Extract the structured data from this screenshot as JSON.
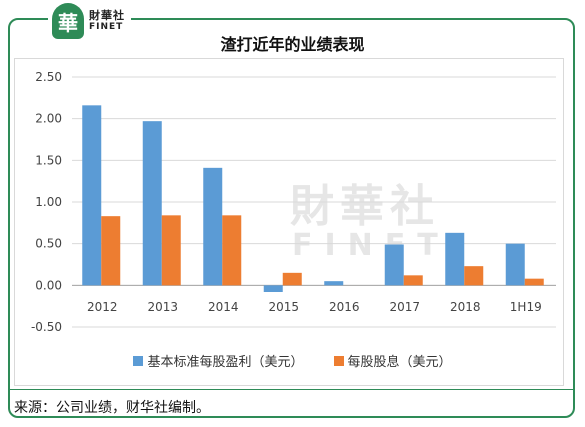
{
  "logo": {
    "glyph": "華",
    "name_cn": "財華社",
    "name_en": "FINET"
  },
  "title": "渣打近年的业绩表现",
  "watermark": {
    "cn": "財華社",
    "en": "FINET"
  },
  "colors": {
    "eps": "#5b9bd5",
    "dps": "#ed7d31",
    "frame": "#2e8b57"
  },
  "chart_data": {
    "type": "bar",
    "title": "渣打近年的业绩表现",
    "categories": [
      "2012",
      "2013",
      "2014",
      "2015",
      "2016",
      "2017",
      "2018",
      "1H19"
    ],
    "series": [
      {
        "name": "基本标准每股盈利（美元）",
        "values": [
          2.16,
          1.97,
          1.41,
          -0.08,
          0.05,
          0.49,
          0.63,
          0.5
        ]
      },
      {
        "name": "每股股息（美元）",
        "values": [
          0.83,
          0.84,
          0.84,
          0.15,
          0.0,
          0.12,
          0.23,
          0.08
        ]
      }
    ],
    "yticks": [
      "2.50",
      "2.00",
      "1.50",
      "1.00",
      "0.50",
      "0.00",
      "-0.50"
    ],
    "ylim": [
      -0.5,
      2.5
    ],
    "grid": true,
    "legend_position": "bottom"
  },
  "source": "来源：公司业绩，财华社编制。"
}
